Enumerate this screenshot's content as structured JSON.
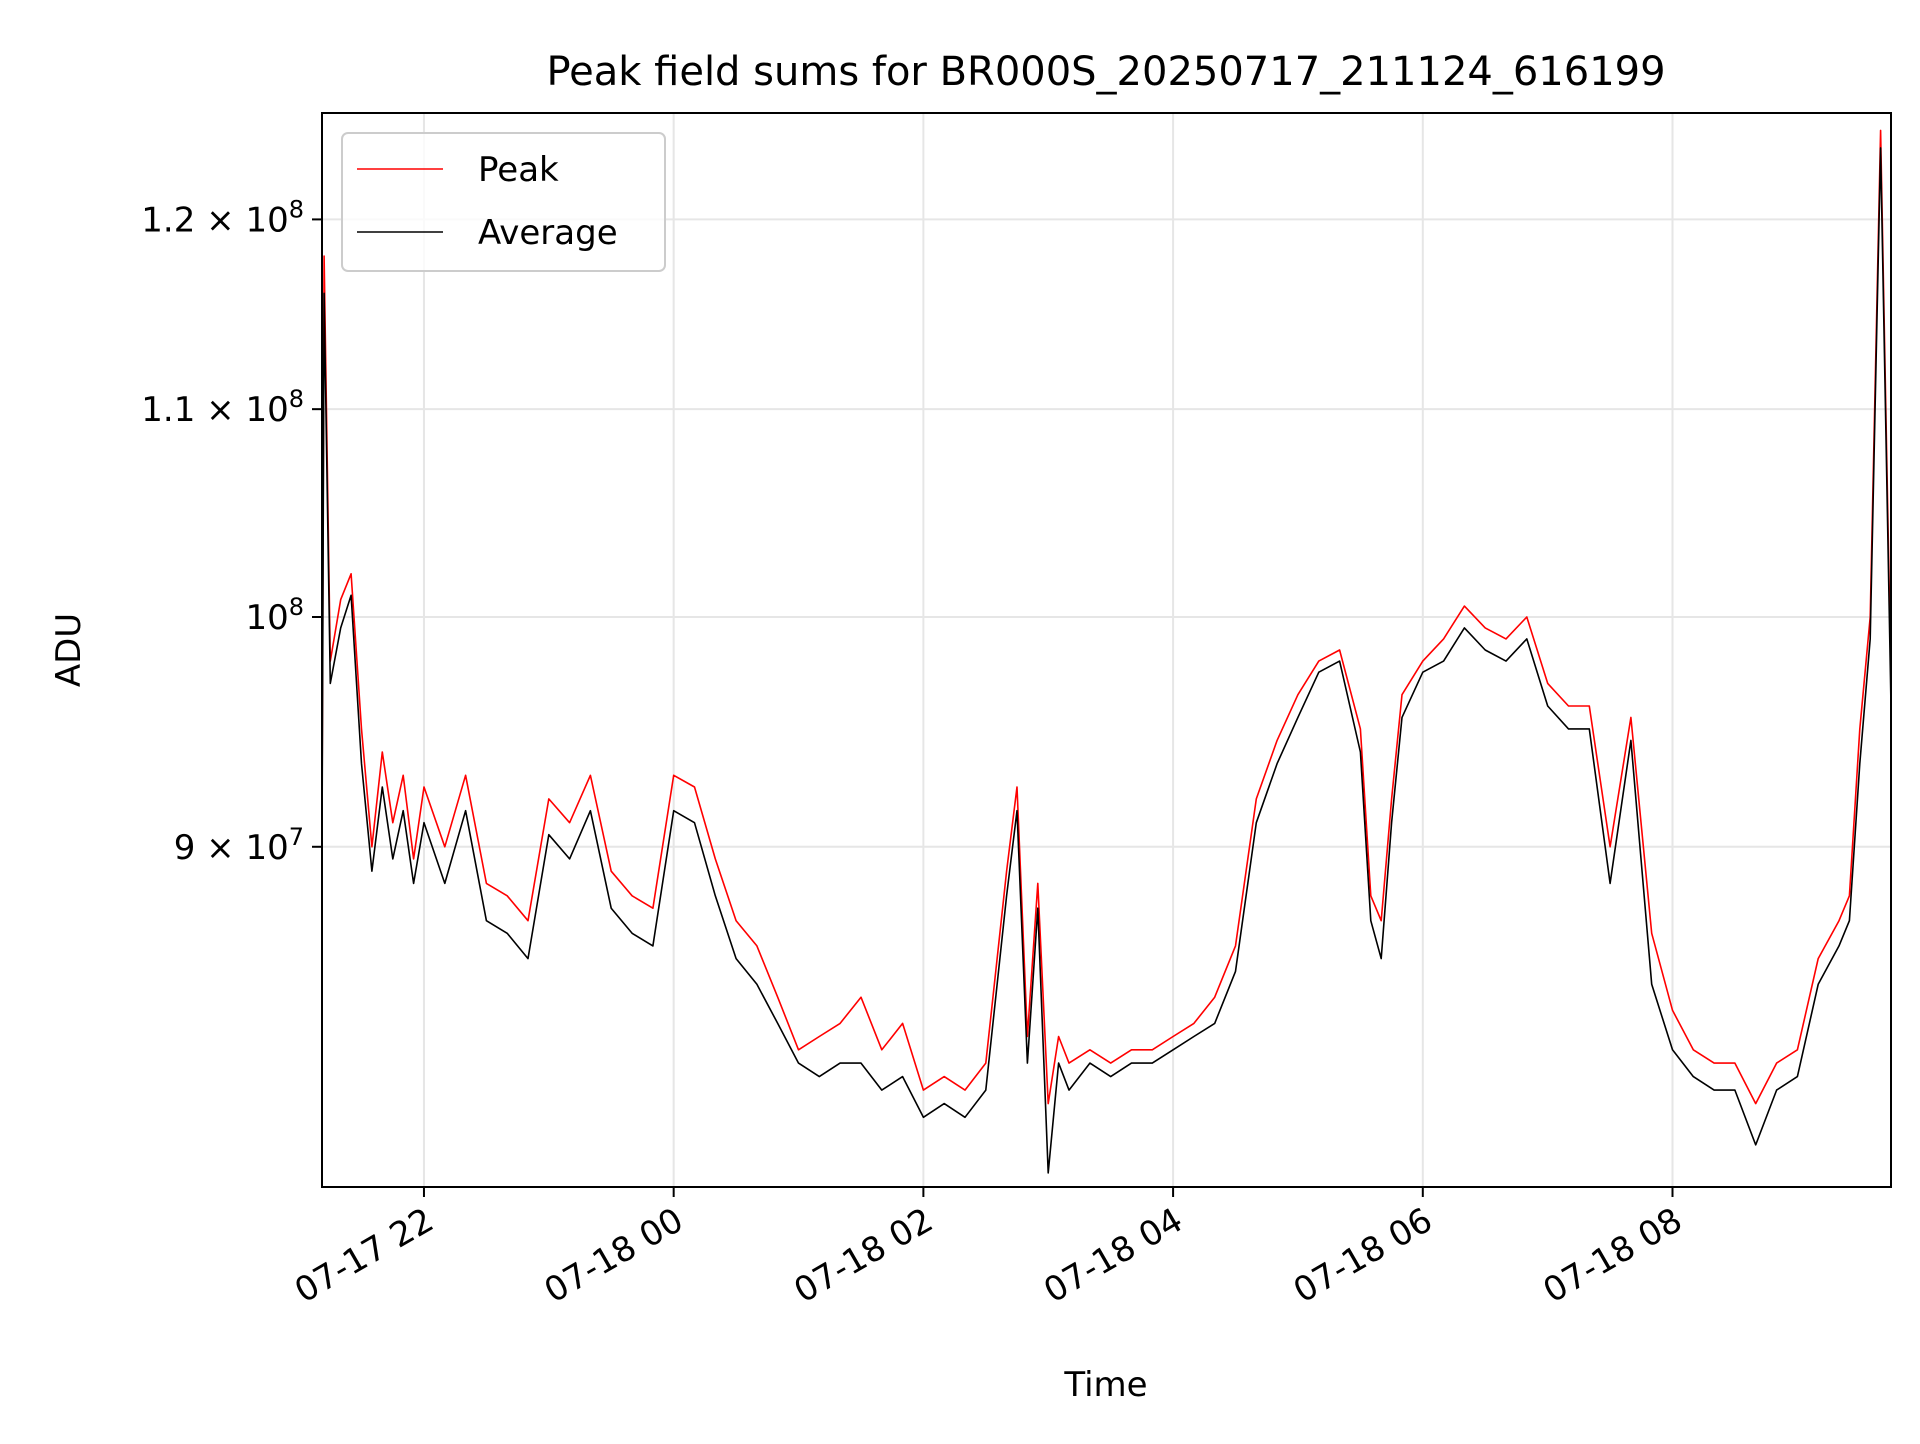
{
  "chart_data": {
    "type": "line",
    "title": "Peak field sums for BR000S_20250717_211124_616199",
    "xlabel": "Time",
    "ylabel": "ADU",
    "y_scale": "log",
    "ylim": [
      77000000,
      126000000
    ],
    "xlim": [
      "2025-07-17 21:11",
      "2025-07-18 09:45"
    ],
    "grid": true,
    "legend_position": "upper left",
    "x_ticks": [
      {
        "value": "2025-07-17 22:00",
        "label": "07-17 22"
      },
      {
        "value": "2025-07-18 00:00",
        "label": "07-18 00"
      },
      {
        "value": "2025-07-18 02:00",
        "label": "07-18 02"
      },
      {
        "value": "2025-07-18 04:00",
        "label": "07-18 04"
      },
      {
        "value": "2025-07-18 06:00",
        "label": "07-18 06"
      },
      {
        "value": "2025-07-18 08:00",
        "label": "07-18 08"
      }
    ],
    "y_ticks": [
      {
        "value": 90000000,
        "mantissa": "9",
        "label": "9 × 10^7"
      },
      {
        "value": 100000000,
        "mantissa": "",
        "label": "10^8"
      },
      {
        "value": 110000000,
        "mantissa": "1.1",
        "label": "1.1 × 10^8"
      },
      {
        "value": 120000000,
        "mantissa": "1.2",
        "label": "1.2 × 10^8"
      }
    ],
    "series": [
      {
        "name": "Peak",
        "color": "#ff0000",
        "x": [
          "2025-07-17 21:11",
          "2025-07-17 21:12",
          "2025-07-17 21:15",
          "2025-07-17 21:20",
          "2025-07-17 21:25",
          "2025-07-17 21:30",
          "2025-07-17 21:35",
          "2025-07-17 21:40",
          "2025-07-17 21:45",
          "2025-07-17 21:50",
          "2025-07-17 21:55",
          "2025-07-17 22:00",
          "2025-07-17 22:10",
          "2025-07-17 22:20",
          "2025-07-17 22:30",
          "2025-07-17 22:40",
          "2025-07-17 22:50",
          "2025-07-17 23:00",
          "2025-07-17 23:10",
          "2025-07-17 23:20",
          "2025-07-17 23:30",
          "2025-07-17 23:40",
          "2025-07-17 23:50",
          "2025-07-18 00:00",
          "2025-07-18 00:10",
          "2025-07-18 00:20",
          "2025-07-18 00:30",
          "2025-07-18 00:40",
          "2025-07-18 00:50",
          "2025-07-18 01:00",
          "2025-07-18 01:10",
          "2025-07-18 01:20",
          "2025-07-18 01:30",
          "2025-07-18 01:40",
          "2025-07-18 01:50",
          "2025-07-18 02:00",
          "2025-07-18 02:10",
          "2025-07-18 02:20",
          "2025-07-18 02:30",
          "2025-07-18 02:40",
          "2025-07-18 02:45",
          "2025-07-18 02:50",
          "2025-07-18 02:55",
          "2025-07-18 03:00",
          "2025-07-18 03:05",
          "2025-07-18 03:10",
          "2025-07-18 03:20",
          "2025-07-18 03:30",
          "2025-07-18 03:40",
          "2025-07-18 03:50",
          "2025-07-18 04:00",
          "2025-07-18 04:10",
          "2025-07-18 04:20",
          "2025-07-18 04:30",
          "2025-07-18 04:40",
          "2025-07-18 04:50",
          "2025-07-18 05:00",
          "2025-07-18 05:10",
          "2025-07-18 05:20",
          "2025-07-18 05:30",
          "2025-07-18 05:35",
          "2025-07-18 05:40",
          "2025-07-18 05:45",
          "2025-07-18 05:50",
          "2025-07-18 06:00",
          "2025-07-18 06:10",
          "2025-07-18 06:20",
          "2025-07-18 06:30",
          "2025-07-18 06:40",
          "2025-07-18 06:50",
          "2025-07-18 07:00",
          "2025-07-18 07:10",
          "2025-07-18 07:20",
          "2025-07-18 07:30",
          "2025-07-18 07:40",
          "2025-07-18 07:50",
          "2025-07-18 08:00",
          "2025-07-18 08:10",
          "2025-07-18 08:20",
          "2025-07-18 08:30",
          "2025-07-18 08:40",
          "2025-07-18 08:50",
          "2025-07-18 09:00",
          "2025-07-18 09:10",
          "2025-07-18 09:20",
          "2025-07-18 09:25",
          "2025-07-18 09:30",
          "2025-07-18 09:35",
          "2025-07-18 09:40",
          "2025-07-18 09:45"
        ],
        "y": [
          91000000,
          118000000,
          98000000,
          100800000,
          102000000,
          95000000,
          90000000,
          94000000,
          91000000,
          93000000,
          89500000,
          92500000,
          90000000,
          93000000,
          88500000,
          88000000,
          87000000,
          92000000,
          91000000,
          93000000,
          89000000,
          88000000,
          87500000,
          93000000,
          92500000,
          89500000,
          87000000,
          86000000,
          84000000,
          82000000,
          82500000,
          83000000,
          84000000,
          82000000,
          83000000,
          80500000,
          81000000,
          80500000,
          81500000,
          89000000,
          92500000,
          82500000,
          88500000,
          80000000,
          82500000,
          81500000,
          82000000,
          81500000,
          82000000,
          82000000,
          82500000,
          83000000,
          84000000,
          86000000,
          92000000,
          94500000,
          96500000,
          98000000,
          98500000,
          95000000,
          88000000,
          87000000,
          92000000,
          96500000,
          98000000,
          99000000,
          100500000,
          99500000,
          99000000,
          100000000,
          97000000,
          96000000,
          96000000,
          90000000,
          95500000,
          86500000,
          83500000,
          82000000,
          81500000,
          81500000,
          80000000,
          81500000,
          82000000,
          85500000,
          87000000,
          88000000,
          95000000,
          100000000,
          125000000,
          97000000
        ]
      },
      {
        "name": "Average",
        "color": "#000000",
        "x": [
          "2025-07-17 21:11",
          "2025-07-17 21:12",
          "2025-07-17 21:15",
          "2025-07-17 21:20",
          "2025-07-17 21:25",
          "2025-07-17 21:30",
          "2025-07-17 21:35",
          "2025-07-17 21:40",
          "2025-07-17 21:45",
          "2025-07-17 21:50",
          "2025-07-17 21:55",
          "2025-07-17 22:00",
          "2025-07-17 22:10",
          "2025-07-17 22:20",
          "2025-07-17 22:30",
          "2025-07-17 22:40",
          "2025-07-17 22:50",
          "2025-07-17 23:00",
          "2025-07-17 23:10",
          "2025-07-17 23:20",
          "2025-07-17 23:30",
          "2025-07-17 23:40",
          "2025-07-17 23:50",
          "2025-07-18 00:00",
          "2025-07-18 00:10",
          "2025-07-18 00:20",
          "2025-07-18 00:30",
          "2025-07-18 00:40",
          "2025-07-18 00:50",
          "2025-07-18 01:00",
          "2025-07-18 01:10",
          "2025-07-18 01:20",
          "2025-07-18 01:30",
          "2025-07-18 01:40",
          "2025-07-18 01:50",
          "2025-07-18 02:00",
          "2025-07-18 02:10",
          "2025-07-18 02:20",
          "2025-07-18 02:30",
          "2025-07-18 02:40",
          "2025-07-18 02:45",
          "2025-07-18 02:50",
          "2025-07-18 02:55",
          "2025-07-18 03:00",
          "2025-07-18 03:05",
          "2025-07-18 03:10",
          "2025-07-18 03:20",
          "2025-07-18 03:30",
          "2025-07-18 03:40",
          "2025-07-18 03:50",
          "2025-07-18 04:00",
          "2025-07-18 04:10",
          "2025-07-18 04:20",
          "2025-07-18 04:30",
          "2025-07-18 04:40",
          "2025-07-18 04:50",
          "2025-07-18 05:00",
          "2025-07-18 05:10",
          "2025-07-18 05:20",
          "2025-07-18 05:30",
          "2025-07-18 05:35",
          "2025-07-18 05:40",
          "2025-07-18 05:45",
          "2025-07-18 05:50",
          "2025-07-18 06:00",
          "2025-07-18 06:10",
          "2025-07-18 06:20",
          "2025-07-18 06:30",
          "2025-07-18 06:40",
          "2025-07-18 06:50",
          "2025-07-18 07:00",
          "2025-07-18 07:10",
          "2025-07-18 07:20",
          "2025-07-18 07:30",
          "2025-07-18 07:40",
          "2025-07-18 07:50",
          "2025-07-18 08:00",
          "2025-07-18 08:10",
          "2025-07-18 08:20",
          "2025-07-18 08:30",
          "2025-07-18 08:40",
          "2025-07-18 08:50",
          "2025-07-18 09:00",
          "2025-07-18 09:10",
          "2025-07-18 09:20",
          "2025-07-18 09:25",
          "2025-07-18 09:30",
          "2025-07-18 09:35",
          "2025-07-18 09:40",
          "2025-07-18 09:45"
        ],
        "y": [
          90000000,
          116000000,
          97000000,
          99500000,
          101000000,
          93500000,
          89000000,
          92500000,
          89500000,
          91500000,
          88500000,
          91000000,
          88500000,
          91500000,
          87000000,
          86500000,
          85500000,
          90500000,
          89500000,
          91500000,
          87500000,
          86500000,
          86000000,
          91500000,
          91000000,
          88000000,
          85500000,
          84500000,
          83000000,
          81500000,
          81000000,
          81500000,
          81500000,
          80500000,
          81000000,
          79500000,
          80000000,
          79500000,
          80500000,
          88000000,
          91500000,
          81500000,
          87500000,
          77500000,
          81500000,
          80500000,
          81500000,
          81000000,
          81500000,
          81500000,
          82000000,
          82500000,
          83000000,
          85000000,
          91000000,
          93500000,
          95500000,
          97500000,
          98000000,
          94000000,
          87000000,
          85500000,
          91000000,
          95500000,
          97500000,
          98000000,
          99500000,
          98500000,
          98000000,
          99000000,
          96000000,
          95000000,
          95000000,
          88500000,
          94500000,
          84500000,
          82000000,
          81000000,
          80500000,
          80500000,
          78500000,
          80500000,
          81000000,
          84500000,
          86000000,
          87000000,
          93500000,
          99000000,
          124000000,
          96000000
        ]
      }
    ]
  }
}
